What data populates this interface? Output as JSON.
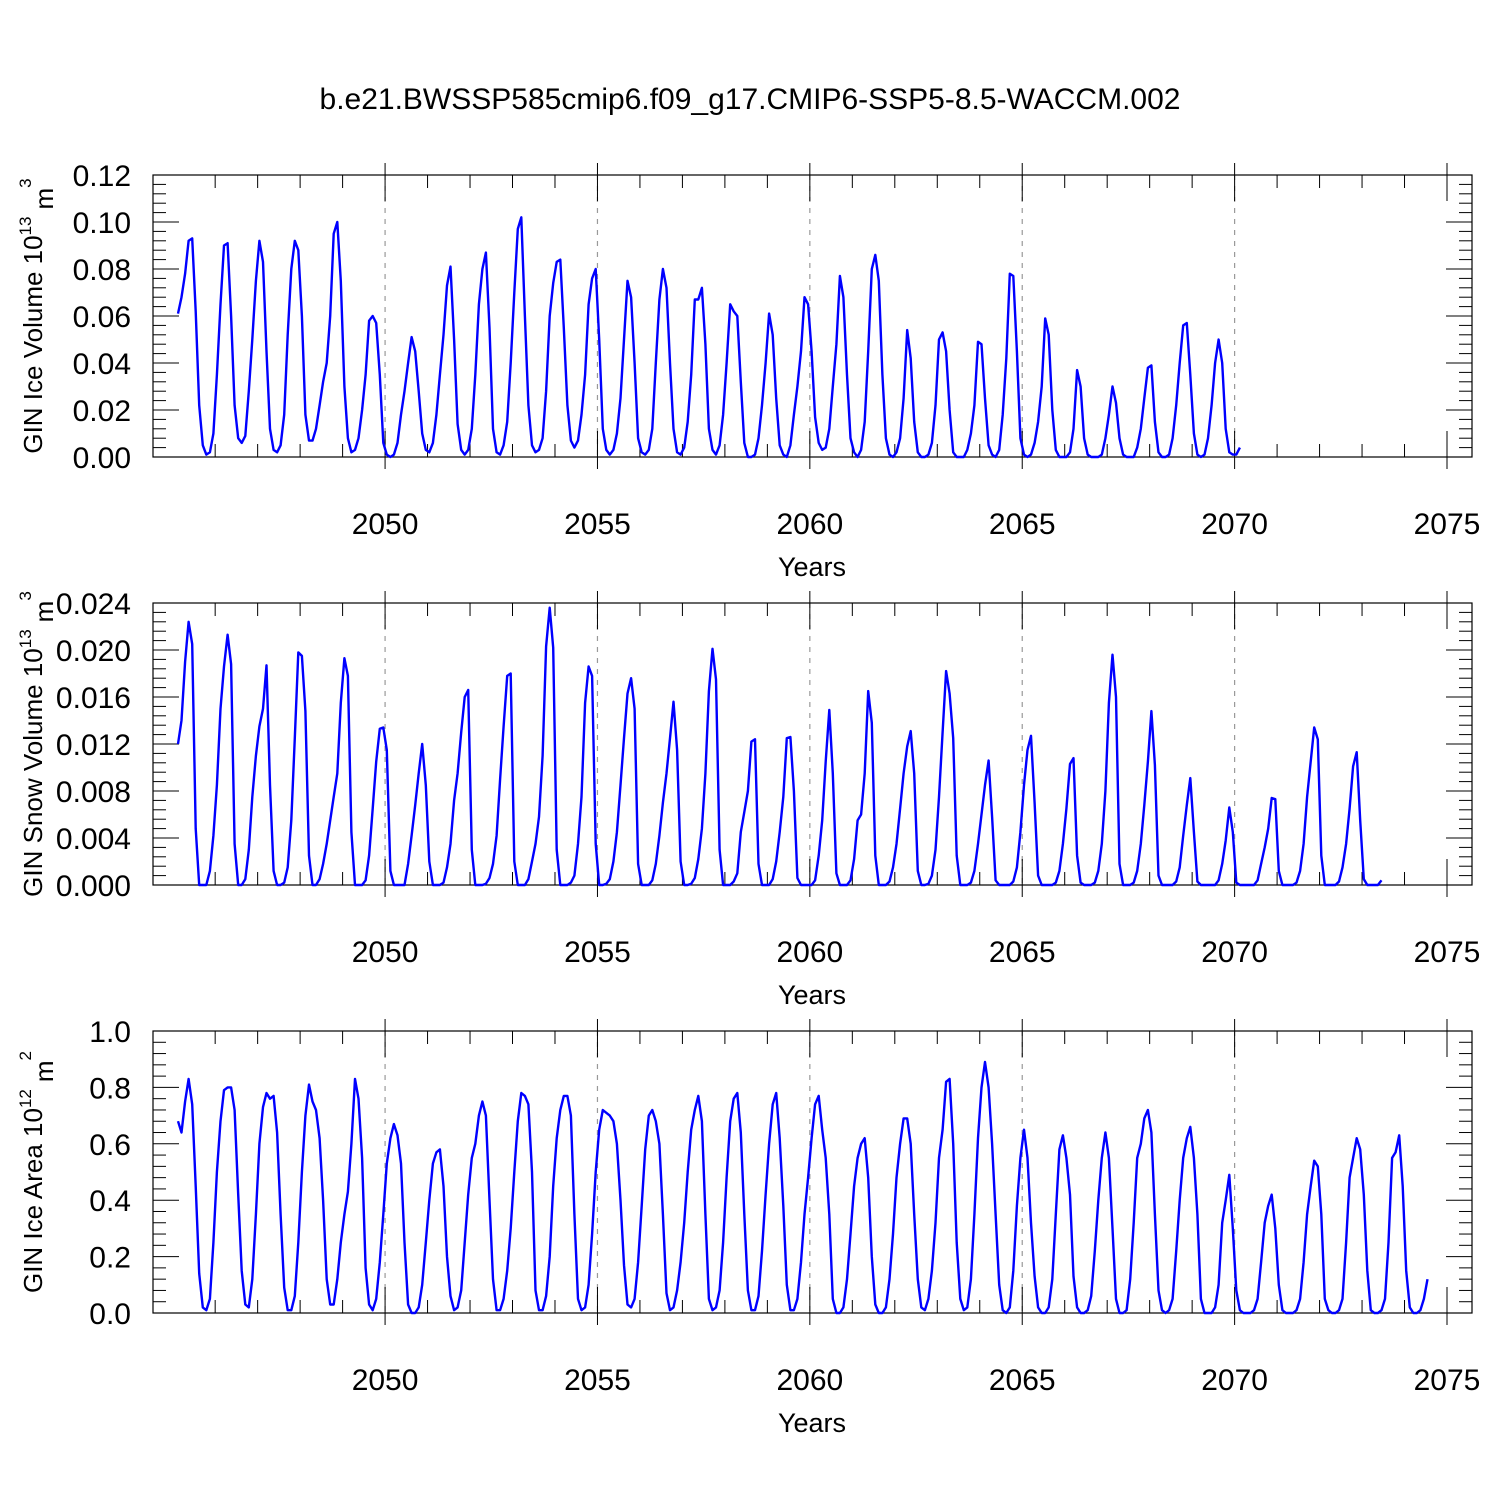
{
  "title": "b.e21.BWSSP585cmip6.f09_g17.CMIP6-SSP5-8.5-WACCM.002",
  "chart_data": [
    {
      "type": "line",
      "ylabel": "GIN Ice Volume 10",
      "ylabel_exp": "13",
      "ylabel_unit": "m",
      "ylabel_unit_exp": "3",
      "xlabel": "Years",
      "xlim": [
        2045.1,
        2075.0
      ],
      "ylim": [
        0,
        0.12
      ],
      "yticks": [
        "0.00",
        "0.02",
        "0.04",
        "0.06",
        "0.08",
        "0.10",
        "0.12"
      ],
      "xticks": [
        "2050",
        "2055",
        "2060",
        "2065",
        "2070",
        "2075"
      ],
      "series_color": "#0000ff",
      "t0": 2045.125,
      "dt": 0.08333,
      "values": [
        0.061,
        0.068,
        0.078,
        0.092,
        0.093,
        0.062,
        0.022,
        0.005,
        0.001,
        0.002,
        0.01,
        0.035,
        0.065,
        0.09,
        0.091,
        0.06,
        0.022,
        0.008,
        0.006,
        0.009,
        0.028,
        0.05,
        0.075,
        0.092,
        0.083,
        0.045,
        0.012,
        0.003,
        0.002,
        0.005,
        0.018,
        0.052,
        0.08,
        0.092,
        0.088,
        0.06,
        0.018,
        0.007,
        0.007,
        0.012,
        0.022,
        0.032,
        0.04,
        0.06,
        0.095,
        0.1,
        0.075,
        0.03,
        0.008,
        0.002,
        0.003,
        0.008,
        0.02,
        0.035,
        0.058,
        0.06,
        0.057,
        0.035,
        0.006,
        0.001,
        0.0,
        0.001,
        0.006,
        0.018,
        0.028,
        0.04,
        0.051,
        0.045,
        0.028,
        0.01,
        0.003,
        0.002,
        0.006,
        0.018,
        0.035,
        0.052,
        0.073,
        0.081,
        0.05,
        0.014,
        0.003,
        0.001,
        0.003,
        0.012,
        0.035,
        0.065,
        0.08,
        0.087,
        0.055,
        0.012,
        0.002,
        0.001,
        0.005,
        0.015,
        0.04,
        0.07,
        0.097,
        0.102,
        0.06,
        0.022,
        0.005,
        0.002,
        0.003,
        0.008,
        0.028,
        0.06,
        0.074,
        0.083,
        0.084,
        0.055,
        0.022,
        0.007,
        0.004,
        0.007,
        0.018,
        0.035,
        0.065,
        0.076,
        0.08,
        0.05,
        0.012,
        0.003,
        0.001,
        0.003,
        0.01,
        0.025,
        0.05,
        0.075,
        0.068,
        0.04,
        0.008,
        0.002,
        0.001,
        0.003,
        0.012,
        0.04,
        0.067,
        0.08,
        0.072,
        0.04,
        0.012,
        0.002,
        0.001,
        0.004,
        0.015,
        0.035,
        0.067,
        0.067,
        0.072,
        0.048,
        0.012,
        0.003,
        0.001,
        0.005,
        0.018,
        0.04,
        0.065,
        0.062,
        0.06,
        0.032,
        0.006,
        0.0,
        0.0,
        0.001,
        0.008,
        0.022,
        0.04,
        0.061,
        0.052,
        0.025,
        0.005,
        0.001,
        0.0,
        0.005,
        0.018,
        0.03,
        0.045,
        0.068,
        0.065,
        0.045,
        0.017,
        0.006,
        0.003,
        0.004,
        0.012,
        0.03,
        0.048,
        0.077,
        0.068,
        0.035,
        0.008,
        0.002,
        0.0,
        0.003,
        0.015,
        0.045,
        0.08,
        0.086,
        0.075,
        0.035,
        0.008,
        0.001,
        0.0,
        0.002,
        0.008,
        0.025,
        0.054,
        0.042,
        0.015,
        0.002,
        0.0,
        0.0,
        0.001,
        0.006,
        0.022,
        0.05,
        0.053,
        0.045,
        0.02,
        0.002,
        0.0,
        0.0,
        0.0,
        0.003,
        0.01,
        0.022,
        0.049,
        0.048,
        0.025,
        0.005,
        0.001,
        0.0,
        0.003,
        0.018,
        0.042,
        0.078,
        0.077,
        0.045,
        0.008,
        0.001,
        0.0,
        0.001,
        0.006,
        0.015,
        0.03,
        0.059,
        0.052,
        0.02,
        0.003,
        0.0,
        0.0,
        0.0,
        0.002,
        0.012,
        0.037,
        0.03,
        0.008,
        0.001,
        0.0,
        0.0,
        0.0,
        0.001,
        0.008,
        0.018,
        0.03,
        0.023,
        0.008,
        0.001,
        0.0,
        0.0,
        0.0,
        0.004,
        0.012,
        0.025,
        0.038,
        0.039,
        0.015,
        0.002,
        0.0,
        0.0,
        0.001,
        0.008,
        0.022,
        0.04,
        0.056,
        0.057,
        0.035,
        0.01,
        0.001,
        0.0,
        0.001,
        0.008,
        0.022,
        0.04,
        0.05,
        0.04,
        0.012,
        0.002,
        0.001,
        0.001,
        0.004
      ]
    },
    {
      "type": "line",
      "ylabel": "GIN Snow Volume 10",
      "ylabel_exp": "13",
      "ylabel_unit": "m",
      "ylabel_unit_exp": "3",
      "xlabel": "Years",
      "xlim": [
        2045.1,
        2075.0
      ],
      "ylim": [
        0,
        0.024
      ],
      "yticks": [
        "0.000",
        "0.004",
        "0.008",
        "0.012",
        "0.016",
        "0.020",
        "0.024"
      ],
      "xticks": [
        "2050",
        "2055",
        "2060",
        "2065",
        "2070",
        "2075"
      ],
      "series_color": "#0000ff",
      "t0": 2045.125,
      "dt": 0.08333,
      "values": [
        0.012,
        0.014,
        0.019,
        0.0224,
        0.0205,
        0.0048,
        0.0,
        0.0,
        0.0,
        0.0012,
        0.0042,
        0.0085,
        0.015,
        0.0186,
        0.0213,
        0.0188,
        0.0035,
        0.0,
        0.0,
        0.0005,
        0.003,
        0.0075,
        0.011,
        0.0135,
        0.015,
        0.0187,
        0.0085,
        0.0012,
        0.0,
        0.0,
        0.0002,
        0.0015,
        0.0055,
        0.0125,
        0.0198,
        0.0195,
        0.0148,
        0.0025,
        0.0,
        0.0,
        0.0005,
        0.0018,
        0.0035,
        0.0055,
        0.0075,
        0.0095,
        0.0155,
        0.0193,
        0.0178,
        0.0045,
        0.0,
        0.0,
        0.0,
        0.0004,
        0.0025,
        0.0065,
        0.0105,
        0.0133,
        0.0134,
        0.0115,
        0.0012,
        0.0,
        0.0,
        0.0,
        0.0,
        0.0018,
        0.0042,
        0.0068,
        0.0095,
        0.012,
        0.0085,
        0.002,
        0.0,
        0.0,
        0.0,
        0.0002,
        0.0015,
        0.0035,
        0.0072,
        0.0095,
        0.013,
        0.016,
        0.0166,
        0.003,
        0.0,
        0.0,
        0.0,
        0.0001,
        0.0006,
        0.0018,
        0.0042,
        0.009,
        0.0135,
        0.0178,
        0.018,
        0.002,
        0.0,
        0.0,
        0.0,
        0.0005,
        0.002,
        0.0035,
        0.0058,
        0.011,
        0.0203,
        0.0236,
        0.0202,
        0.003,
        0.0,
        0.0,
        0.0,
        0.0002,
        0.0008,
        0.0035,
        0.0075,
        0.0155,
        0.0186,
        0.0178,
        0.0035,
        0.0,
        0.0,
        0.0001,
        0.0005,
        0.002,
        0.0045,
        0.0085,
        0.0125,
        0.0163,
        0.0176,
        0.015,
        0.0018,
        0.0,
        0.0,
        0.0,
        0.0004,
        0.0018,
        0.0042,
        0.007,
        0.0095,
        0.0125,
        0.0156,
        0.0115,
        0.002,
        0.0,
        0.0,
        0.0001,
        0.0006,
        0.0022,
        0.0048,
        0.0095,
        0.0165,
        0.0201,
        0.0175,
        0.003,
        0.0,
        0.0,
        0.0,
        0.0003,
        0.001,
        0.0045,
        0.0062,
        0.008,
        0.0122,
        0.0124,
        0.0018,
        0.0,
        0.0,
        0.0,
        0.0005,
        0.002,
        0.0045,
        0.0075,
        0.0125,
        0.0126,
        0.008,
        0.0006,
        0.0,
        0.0,
        0.0,
        0.0,
        0.0004,
        0.0025,
        0.0055,
        0.0105,
        0.0149,
        0.0095,
        0.001,
        0.0,
        0.0,
        0.0,
        0.0004,
        0.0022,
        0.0055,
        0.006,
        0.0095,
        0.0165,
        0.0138,
        0.0025,
        0.0,
        0.0,
        0.0,
        0.0003,
        0.0015,
        0.0035,
        0.0065,
        0.0095,
        0.0118,
        0.0131,
        0.0095,
        0.0012,
        0.0,
        0.0,
        0.0001,
        0.0008,
        0.003,
        0.0075,
        0.013,
        0.0182,
        0.0163,
        0.0125,
        0.0025,
        0.0,
        0.0,
        0.0,
        0.0002,
        0.0012,
        0.0035,
        0.006,
        0.0085,
        0.0106,
        0.0058,
        0.0004,
        0.0,
        0.0,
        0.0,
        0.0,
        0.0003,
        0.0015,
        0.0045,
        0.0085,
        0.0115,
        0.0127,
        0.007,
        0.0008,
        0.0,
        0.0,
        0.0,
        0.0,
        0.0002,
        0.0012,
        0.0035,
        0.0065,
        0.0103,
        0.0108,
        0.0025,
        0.0002,
        0.0,
        0.0,
        0.0,
        0.0002,
        0.0012,
        0.0035,
        0.008,
        0.0155,
        0.0196,
        0.016,
        0.0018,
        0.0,
        0.0,
        0.0,
        0.0002,
        0.0012,
        0.0035,
        0.0068,
        0.0105,
        0.0148,
        0.0102,
        0.0008,
        0.0,
        0.0,
        0.0,
        0.0,
        0.0003,
        0.0015,
        0.0042,
        0.0068,
        0.0091,
        0.0045,
        0.0003,
        0.0,
        0.0,
        0.0,
        0.0,
        0.0,
        0.0004,
        0.0018,
        0.0038,
        0.0066,
        0.0045,
        0.0002,
        0.0,
        0.0,
        0.0,
        0.0,
        0.0,
        0.0004,
        0.0018,
        0.0032,
        0.0048,
        0.0074,
        0.0073,
        0.0012,
        0.0,
        0.0,
        0.0,
        0.0,
        0.0002,
        0.0012,
        0.0035,
        0.0075,
        0.0105,
        0.0134,
        0.0124,
        0.0025,
        0.0,
        0.0,
        0.0,
        0.0,
        0.0003,
        0.0015,
        0.0035,
        0.0065,
        0.0101,
        0.0113,
        0.0055,
        0.0005,
        0.0,
        0.0,
        0.0,
        0.0,
        0.0004
      ]
    },
    {
      "type": "line",
      "ylabel": "GIN Ice Area 10",
      "ylabel_exp": "12",
      "ylabel_unit": "m",
      "ylabel_unit_exp": "2",
      "xlabel": "Years",
      "xlim": [
        2045.1,
        2075.0
      ],
      "ylim": [
        0,
        1.0
      ],
      "yticks": [
        "0.0",
        "0.2",
        "0.4",
        "0.6",
        "0.8",
        "1.0"
      ],
      "xticks": [
        "2050",
        "2055",
        "2060",
        "2065",
        "2070",
        "2075"
      ],
      "series_color": "#0000ff",
      "t0": 2045.125,
      "dt": 0.08333,
      "values": [
        0.68,
        0.64,
        0.75,
        0.83,
        0.74,
        0.45,
        0.14,
        0.02,
        0.01,
        0.05,
        0.25,
        0.5,
        0.68,
        0.79,
        0.8,
        0.8,
        0.72,
        0.42,
        0.15,
        0.03,
        0.02,
        0.12,
        0.35,
        0.6,
        0.73,
        0.78,
        0.76,
        0.77,
        0.64,
        0.35,
        0.09,
        0.01,
        0.01,
        0.06,
        0.25,
        0.5,
        0.7,
        0.81,
        0.75,
        0.72,
        0.62,
        0.4,
        0.12,
        0.03,
        0.03,
        0.12,
        0.25,
        0.35,
        0.43,
        0.6,
        0.83,
        0.76,
        0.55,
        0.16,
        0.03,
        0.01,
        0.05,
        0.18,
        0.35,
        0.53,
        0.62,
        0.67,
        0.63,
        0.53,
        0.25,
        0.03,
        0.0,
        0.0,
        0.02,
        0.1,
        0.25,
        0.4,
        0.53,
        0.57,
        0.58,
        0.45,
        0.2,
        0.06,
        0.01,
        0.02,
        0.08,
        0.25,
        0.42,
        0.55,
        0.6,
        0.7,
        0.75,
        0.7,
        0.4,
        0.12,
        0.01,
        0.01,
        0.05,
        0.15,
        0.3,
        0.5,
        0.68,
        0.78,
        0.77,
        0.74,
        0.5,
        0.08,
        0.01,
        0.01,
        0.06,
        0.2,
        0.45,
        0.62,
        0.72,
        0.77,
        0.77,
        0.7,
        0.35,
        0.05,
        0.01,
        0.02,
        0.1,
        0.28,
        0.5,
        0.65,
        0.72,
        0.71,
        0.7,
        0.68,
        0.6,
        0.4,
        0.17,
        0.03,
        0.02,
        0.05,
        0.18,
        0.38,
        0.58,
        0.7,
        0.72,
        0.68,
        0.6,
        0.35,
        0.07,
        0.01,
        0.02,
        0.08,
        0.18,
        0.32,
        0.5,
        0.65,
        0.72,
        0.77,
        0.68,
        0.35,
        0.05,
        0.01,
        0.02,
        0.08,
        0.25,
        0.48,
        0.68,
        0.76,
        0.78,
        0.64,
        0.35,
        0.08,
        0.01,
        0.01,
        0.06,
        0.22,
        0.42,
        0.6,
        0.74,
        0.78,
        0.62,
        0.38,
        0.1,
        0.01,
        0.01,
        0.05,
        0.18,
        0.35,
        0.48,
        0.62,
        0.74,
        0.77,
        0.65,
        0.55,
        0.35,
        0.05,
        0.0,
        0.0,
        0.02,
        0.12,
        0.28,
        0.45,
        0.55,
        0.6,
        0.62,
        0.48,
        0.2,
        0.03,
        0.0,
        0.0,
        0.02,
        0.12,
        0.28,
        0.48,
        0.6,
        0.69,
        0.69,
        0.6,
        0.35,
        0.12,
        0.02,
        0.01,
        0.05,
        0.15,
        0.32,
        0.55,
        0.65,
        0.82,
        0.83,
        0.6,
        0.25,
        0.05,
        0.01,
        0.02,
        0.12,
        0.35,
        0.62,
        0.8,
        0.89,
        0.8,
        0.6,
        0.35,
        0.1,
        0.01,
        0.0,
        0.02,
        0.15,
        0.38,
        0.55,
        0.65,
        0.55,
        0.32,
        0.13,
        0.02,
        0.0,
        0.0,
        0.02,
        0.12,
        0.35,
        0.58,
        0.63,
        0.55,
        0.42,
        0.13,
        0.02,
        0.0,
        0.0,
        0.01,
        0.06,
        0.22,
        0.4,
        0.55,
        0.64,
        0.55,
        0.3,
        0.05,
        0.0,
        0.0,
        0.01,
        0.12,
        0.32,
        0.55,
        0.6,
        0.69,
        0.72,
        0.64,
        0.35,
        0.08,
        0.01,
        0.0,
        0.01,
        0.05,
        0.22,
        0.4,
        0.55,
        0.62,
        0.66,
        0.55,
        0.35,
        0.05,
        0.0,
        0.0,
        0.0,
        0.02,
        0.1,
        0.32,
        0.4,
        0.49,
        0.3,
        0.08,
        0.01,
        0.0,
        0.0,
        0.0,
        0.01,
        0.05,
        0.18,
        0.32,
        0.38,
        0.42,
        0.3,
        0.1,
        0.01,
        0.0,
        0.0,
        0.0,
        0.01,
        0.05,
        0.18,
        0.35,
        0.45,
        0.54,
        0.52,
        0.35,
        0.05,
        0.01,
        0.0,
        0.0,
        0.01,
        0.05,
        0.25,
        0.48,
        0.55,
        0.62,
        0.58,
        0.42,
        0.15,
        0.01,
        0.0,
        0.0,
        0.01,
        0.05,
        0.25,
        0.55,
        0.57,
        0.63,
        0.45,
        0.15,
        0.02,
        0.0,
        0.0,
        0.01,
        0.05,
        0.12
      ]
    }
  ]
}
